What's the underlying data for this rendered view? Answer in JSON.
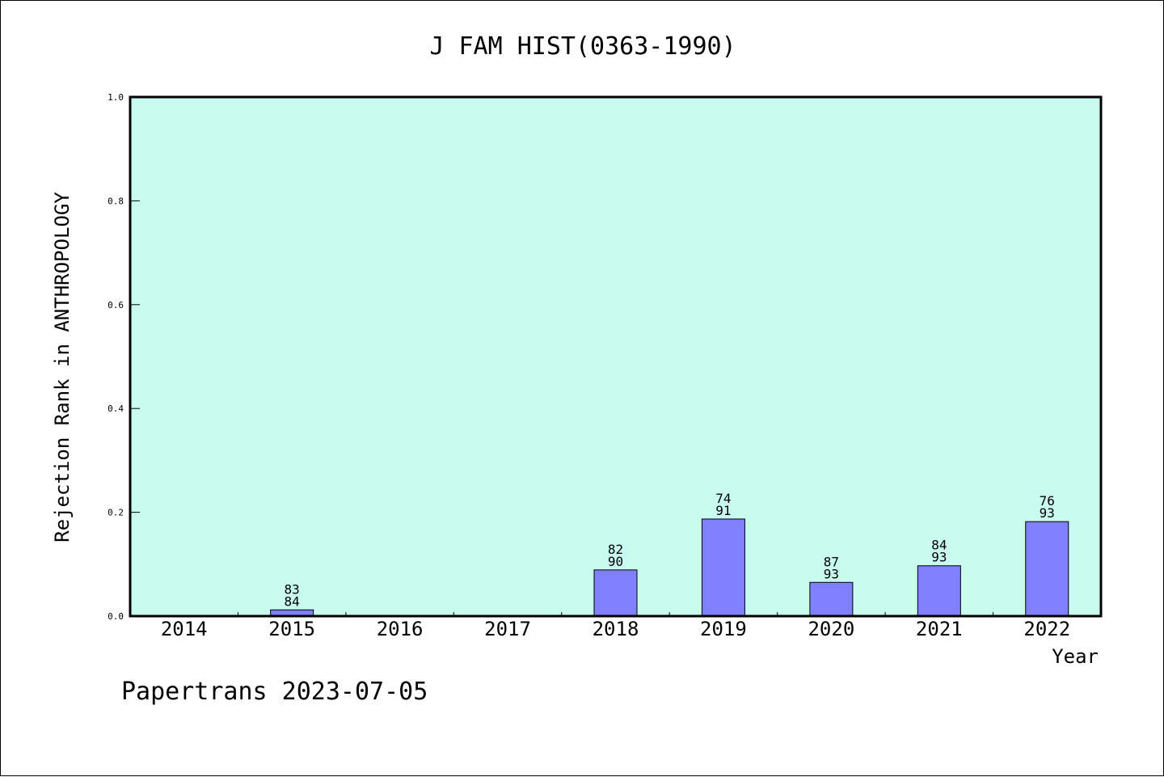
{
  "chart_data": {
    "type": "bar",
    "title": "J FAM HIST(0363-1990)",
    "xlabel": "Year",
    "ylabel": "Rejection Rank in ANTHROPOLOGY",
    "categories": [
      "2014",
      "2015",
      "2016",
      "2017",
      "2018",
      "2019",
      "2020",
      "2021",
      "2022"
    ],
    "values": [
      null,
      0.012,
      null,
      null,
      0.089,
      0.187,
      0.065,
      0.097,
      0.182
    ],
    "bar_labels": [
      null,
      [
        "83",
        "84"
      ],
      null,
      null,
      [
        "82",
        "90"
      ],
      [
        "74",
        "91"
      ],
      [
        "87",
        "93"
      ],
      [
        "84",
        "93"
      ],
      [
        "76",
        "93"
      ]
    ],
    "ylim": [
      0,
      1.0
    ],
    "yticks": [
      "0.0",
      "0.2",
      "0.4",
      "0.6",
      "0.8",
      "1.0"
    ],
    "ytick_values": [
      0,
      0.2,
      0.4,
      0.6,
      0.8,
      1.0
    ],
    "grid": false,
    "colors": {
      "plot_background": "#c8fcee",
      "bar_fill": "#8080ff",
      "bar_stroke": "#000000"
    }
  },
  "footer": "Papertrans 2023-07-05"
}
